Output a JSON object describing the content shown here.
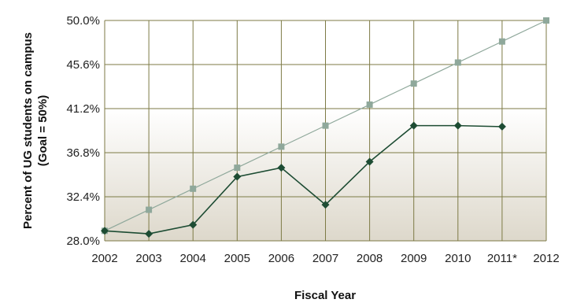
{
  "chart_data": {
    "type": "line",
    "title": "",
    "xlabel": "Fiscal Year",
    "ylabel_lines": [
      "Percent of UG students on campus",
      "(Goal = 50%)"
    ],
    "categories": [
      "2002",
      "2003",
      "2004",
      "2005",
      "2006",
      "2007",
      "2008",
      "2009",
      "2010",
      "2011*",
      "2012"
    ],
    "y_ticks": [
      "28.0%",
      "32.4%",
      "36.8%",
      "41.2%",
      "45.6%",
      "50.0%"
    ],
    "ylim": [
      28.0,
      50.0
    ],
    "grid": true,
    "series": [
      {
        "color": "#8fa89b",
        "marker": "square",
        "values": [
          29.0,
          31.1,
          33.2,
          35.3,
          37.4,
          39.5,
          41.6,
          43.7,
          45.8,
          47.9,
          50.0
        ]
      },
      {
        "color": "#1d4c33",
        "marker": "diamond",
        "values": [
          29.0,
          28.7,
          29.6,
          34.4,
          35.3,
          31.6,
          35.9,
          39.5,
          39.5,
          39.4,
          null
        ]
      }
    ]
  }
}
